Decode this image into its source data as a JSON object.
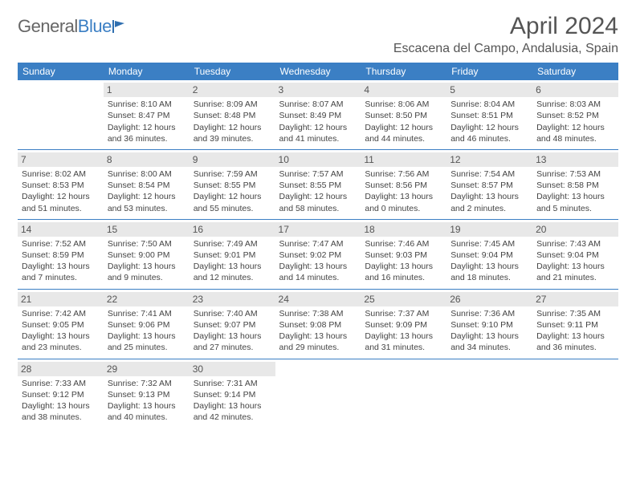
{
  "logo": {
    "part1": "General",
    "part2": "Blue"
  },
  "title": "April 2024",
  "location": "Escacena del Campo, Andalusia, Spain",
  "colors": {
    "header_bg": "#3b7fc4",
    "header_text": "#ffffff",
    "daynum_bg": "#e8e8e8",
    "text": "#444444",
    "rule": "#3b7fc4"
  },
  "dayNames": [
    "Sunday",
    "Monday",
    "Tuesday",
    "Wednesday",
    "Thursday",
    "Friday",
    "Saturday"
  ],
  "weeks": [
    [
      {
        "n": "",
        "sunrise": "",
        "sunset": "",
        "daylight1": "",
        "daylight2": ""
      },
      {
        "n": "1",
        "sunrise": "Sunrise: 8:10 AM",
        "sunset": "Sunset: 8:47 PM",
        "daylight1": "Daylight: 12 hours",
        "daylight2": "and 36 minutes."
      },
      {
        "n": "2",
        "sunrise": "Sunrise: 8:09 AM",
        "sunset": "Sunset: 8:48 PM",
        "daylight1": "Daylight: 12 hours",
        "daylight2": "and 39 minutes."
      },
      {
        "n": "3",
        "sunrise": "Sunrise: 8:07 AM",
        "sunset": "Sunset: 8:49 PM",
        "daylight1": "Daylight: 12 hours",
        "daylight2": "and 41 minutes."
      },
      {
        "n": "4",
        "sunrise": "Sunrise: 8:06 AM",
        "sunset": "Sunset: 8:50 PM",
        "daylight1": "Daylight: 12 hours",
        "daylight2": "and 44 minutes."
      },
      {
        "n": "5",
        "sunrise": "Sunrise: 8:04 AM",
        "sunset": "Sunset: 8:51 PM",
        "daylight1": "Daylight: 12 hours",
        "daylight2": "and 46 minutes."
      },
      {
        "n": "6",
        "sunrise": "Sunrise: 8:03 AM",
        "sunset": "Sunset: 8:52 PM",
        "daylight1": "Daylight: 12 hours",
        "daylight2": "and 48 minutes."
      }
    ],
    [
      {
        "n": "7",
        "sunrise": "Sunrise: 8:02 AM",
        "sunset": "Sunset: 8:53 PM",
        "daylight1": "Daylight: 12 hours",
        "daylight2": "and 51 minutes."
      },
      {
        "n": "8",
        "sunrise": "Sunrise: 8:00 AM",
        "sunset": "Sunset: 8:54 PM",
        "daylight1": "Daylight: 12 hours",
        "daylight2": "and 53 minutes."
      },
      {
        "n": "9",
        "sunrise": "Sunrise: 7:59 AM",
        "sunset": "Sunset: 8:55 PM",
        "daylight1": "Daylight: 12 hours",
        "daylight2": "and 55 minutes."
      },
      {
        "n": "10",
        "sunrise": "Sunrise: 7:57 AM",
        "sunset": "Sunset: 8:55 PM",
        "daylight1": "Daylight: 12 hours",
        "daylight2": "and 58 minutes."
      },
      {
        "n": "11",
        "sunrise": "Sunrise: 7:56 AM",
        "sunset": "Sunset: 8:56 PM",
        "daylight1": "Daylight: 13 hours",
        "daylight2": "and 0 minutes."
      },
      {
        "n": "12",
        "sunrise": "Sunrise: 7:54 AM",
        "sunset": "Sunset: 8:57 PM",
        "daylight1": "Daylight: 13 hours",
        "daylight2": "and 2 minutes."
      },
      {
        "n": "13",
        "sunrise": "Sunrise: 7:53 AM",
        "sunset": "Sunset: 8:58 PM",
        "daylight1": "Daylight: 13 hours",
        "daylight2": "and 5 minutes."
      }
    ],
    [
      {
        "n": "14",
        "sunrise": "Sunrise: 7:52 AM",
        "sunset": "Sunset: 8:59 PM",
        "daylight1": "Daylight: 13 hours",
        "daylight2": "and 7 minutes."
      },
      {
        "n": "15",
        "sunrise": "Sunrise: 7:50 AM",
        "sunset": "Sunset: 9:00 PM",
        "daylight1": "Daylight: 13 hours",
        "daylight2": "and 9 minutes."
      },
      {
        "n": "16",
        "sunrise": "Sunrise: 7:49 AM",
        "sunset": "Sunset: 9:01 PM",
        "daylight1": "Daylight: 13 hours",
        "daylight2": "and 12 minutes."
      },
      {
        "n": "17",
        "sunrise": "Sunrise: 7:47 AM",
        "sunset": "Sunset: 9:02 PM",
        "daylight1": "Daylight: 13 hours",
        "daylight2": "and 14 minutes."
      },
      {
        "n": "18",
        "sunrise": "Sunrise: 7:46 AM",
        "sunset": "Sunset: 9:03 PM",
        "daylight1": "Daylight: 13 hours",
        "daylight2": "and 16 minutes."
      },
      {
        "n": "19",
        "sunrise": "Sunrise: 7:45 AM",
        "sunset": "Sunset: 9:04 PM",
        "daylight1": "Daylight: 13 hours",
        "daylight2": "and 18 minutes."
      },
      {
        "n": "20",
        "sunrise": "Sunrise: 7:43 AM",
        "sunset": "Sunset: 9:04 PM",
        "daylight1": "Daylight: 13 hours",
        "daylight2": "and 21 minutes."
      }
    ],
    [
      {
        "n": "21",
        "sunrise": "Sunrise: 7:42 AM",
        "sunset": "Sunset: 9:05 PM",
        "daylight1": "Daylight: 13 hours",
        "daylight2": "and 23 minutes."
      },
      {
        "n": "22",
        "sunrise": "Sunrise: 7:41 AM",
        "sunset": "Sunset: 9:06 PM",
        "daylight1": "Daylight: 13 hours",
        "daylight2": "and 25 minutes."
      },
      {
        "n": "23",
        "sunrise": "Sunrise: 7:40 AM",
        "sunset": "Sunset: 9:07 PM",
        "daylight1": "Daylight: 13 hours",
        "daylight2": "and 27 minutes."
      },
      {
        "n": "24",
        "sunrise": "Sunrise: 7:38 AM",
        "sunset": "Sunset: 9:08 PM",
        "daylight1": "Daylight: 13 hours",
        "daylight2": "and 29 minutes."
      },
      {
        "n": "25",
        "sunrise": "Sunrise: 7:37 AM",
        "sunset": "Sunset: 9:09 PM",
        "daylight1": "Daylight: 13 hours",
        "daylight2": "and 31 minutes."
      },
      {
        "n": "26",
        "sunrise": "Sunrise: 7:36 AM",
        "sunset": "Sunset: 9:10 PM",
        "daylight1": "Daylight: 13 hours",
        "daylight2": "and 34 minutes."
      },
      {
        "n": "27",
        "sunrise": "Sunrise: 7:35 AM",
        "sunset": "Sunset: 9:11 PM",
        "daylight1": "Daylight: 13 hours",
        "daylight2": "and 36 minutes."
      }
    ],
    [
      {
        "n": "28",
        "sunrise": "Sunrise: 7:33 AM",
        "sunset": "Sunset: 9:12 PM",
        "daylight1": "Daylight: 13 hours",
        "daylight2": "and 38 minutes."
      },
      {
        "n": "29",
        "sunrise": "Sunrise: 7:32 AM",
        "sunset": "Sunset: 9:13 PM",
        "daylight1": "Daylight: 13 hours",
        "daylight2": "and 40 minutes."
      },
      {
        "n": "30",
        "sunrise": "Sunrise: 7:31 AM",
        "sunset": "Sunset: 9:14 PM",
        "daylight1": "Daylight: 13 hours",
        "daylight2": "and 42 minutes."
      },
      {
        "n": "",
        "sunrise": "",
        "sunset": "",
        "daylight1": "",
        "daylight2": ""
      },
      {
        "n": "",
        "sunrise": "",
        "sunset": "",
        "daylight1": "",
        "daylight2": ""
      },
      {
        "n": "",
        "sunrise": "",
        "sunset": "",
        "daylight1": "",
        "daylight2": ""
      },
      {
        "n": "",
        "sunrise": "",
        "sunset": "",
        "daylight1": "",
        "daylight2": ""
      }
    ]
  ]
}
